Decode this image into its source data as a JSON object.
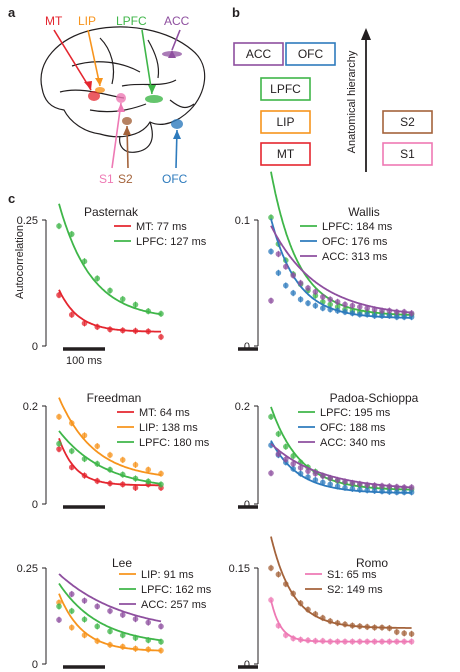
{
  "panel_labels": {
    "a": "a",
    "b": "b",
    "c": "c"
  },
  "colors": {
    "MT": "#e4262f",
    "LIP": "#f7941d",
    "LPFC": "#3fb649",
    "ACC": "#8e4f9f",
    "OFC": "#2e7bbd",
    "S1": "#ee79b4",
    "S2": "#a4633b",
    "ink": "#231f20"
  },
  "panel_a": {
    "labels": [
      "MT",
      "LIP",
      "LPFC",
      "ACC",
      "S1",
      "S2",
      "OFC"
    ],
    "icon": "macaque-brain-icon"
  },
  "panel_b": {
    "axis_label": "Anatomical hierarchy",
    "boxes": [
      "ACC",
      "OFC",
      "LPFC",
      "LIP",
      "MT",
      "S2",
      "S1"
    ]
  },
  "panel_c": {
    "y_axis_label": "Autocorrelation",
    "scale_bar_label": "100 ms"
  },
  "chart_data": [
    {
      "type": "scatter",
      "title": "Pasternak",
      "ylim": [
        0,
        0.25
      ],
      "yticks": [
        "0",
        "0.25"
      ],
      "series": [
        {
          "name": "MT: 77 ms",
          "region": "MT",
          "x": [
            50,
            100,
            150,
            200,
            250,
            300,
            350,
            400,
            450
          ],
          "y": [
            0.101,
            0.062,
            0.045,
            0.038,
            0.033,
            0.031,
            0.03,
            0.029,
            0.018
          ],
          "fit": {
            "a": 0.16,
            "tau": 77,
            "b": 0.028
          }
        },
        {
          "name": "LPFC: 127 ms",
          "region": "LPFC",
          "x": [
            50,
            100,
            150,
            200,
            250,
            300,
            350,
            400,
            450
          ],
          "y": [
            0.238,
            0.222,
            0.168,
            0.134,
            0.11,
            0.093,
            0.082,
            0.069,
            0.064
          ],
          "fit": {
            "a": 0.34,
            "tau": 127,
            "b": 0.053
          }
        }
      ]
    },
    {
      "type": "scatter",
      "title": "Wallis",
      "ylim": [
        0,
        0.1
      ],
      "yticks": [
        "0",
        "0.1"
      ],
      "series": [
        {
          "name": "LPFC: 184 ms",
          "region": "LPFC",
          "x": [
            50,
            100,
            150,
            200,
            250,
            300,
            350,
            400,
            450,
            500,
            550,
            600,
            650,
            700,
            750,
            800,
            850,
            900,
            950,
            1000
          ],
          "y": [
            0.102,
            0.081,
            0.068,
            0.057,
            0.049,
            0.044,
            0.04,
            0.035,
            0.033,
            0.031,
            0.029,
            0.028,
            0.027,
            0.027,
            0.026,
            0.026,
            0.025,
            0.025,
            0.025,
            0.025
          ],
          "fit": {
            "a": 0.15,
            "tau": 184,
            "b": 0.024
          }
        },
        {
          "name": "OFC: 176 ms",
          "region": "OFC",
          "x": [
            50,
            100,
            150,
            200,
            250,
            300,
            350,
            400,
            450,
            500,
            550,
            600,
            650,
            700,
            750,
            800,
            850,
            900,
            950,
            1000
          ],
          "y": [
            0.075,
            0.058,
            0.048,
            0.042,
            0.037,
            0.034,
            0.032,
            0.03,
            0.029,
            0.028,
            0.027,
            0.026,
            0.025,
            0.025,
            0.024,
            0.024,
            0.024,
            0.023,
            0.023,
            0.023
          ],
          "fit": {
            "a": 0.105,
            "tau": 176,
            "b": 0.022
          }
        },
        {
          "name": "ACC: 313 ms",
          "region": "ACC",
          "x": [
            50,
            100,
            150,
            200,
            250,
            300,
            350,
            400,
            450,
            500,
            550,
            600,
            650,
            700,
            750,
            800,
            850,
            900,
            950,
            1000
          ],
          "y": [
            0.036,
            0.073,
            0.063,
            0.056,
            0.05,
            0.046,
            0.043,
            0.039,
            0.037,
            0.035,
            0.033,
            0.032,
            0.031,
            0.03,
            0.029,
            0.028,
            0.028,
            0.027,
            0.027,
            0.026
          ],
          "fit": {
            "a": 0.085,
            "tau": 313,
            "b": 0.023
          }
        }
      ]
    },
    {
      "type": "scatter",
      "title": "Freedman",
      "ylim": [
        0,
        0.2
      ],
      "yticks": [
        "0",
        "0.2"
      ],
      "series": [
        {
          "name": "MT: 64 ms",
          "region": "MT",
          "x": [
            50,
            100,
            150,
            200,
            250,
            300,
            350,
            400,
            450
          ],
          "y": [
            0.112,
            0.075,
            0.058,
            0.047,
            0.042,
            0.04,
            0.033,
            0.04,
            0.033
          ],
          "fit": {
            "a": 0.21,
            "tau": 64,
            "b": 0.038
          }
        },
        {
          "name": "LIP: 138 ms",
          "region": "LIP",
          "x": [
            50,
            100,
            150,
            200,
            250,
            300,
            350,
            400,
            450
          ],
          "y": [
            0.178,
            0.165,
            0.14,
            0.118,
            0.1,
            0.09,
            0.08,
            0.07,
            0.062
          ],
          "fit": {
            "a": 0.24,
            "tau": 138,
            "b": 0.05
          }
        },
        {
          "name": "LPFC: 180 ms",
          "region": "LPFC",
          "x": [
            50,
            100,
            150,
            200,
            250,
            300,
            350,
            400,
            450
          ],
          "y": [
            0.123,
            0.108,
            0.092,
            0.082,
            0.07,
            0.06,
            0.052,
            0.046,
            0.04
          ],
          "fit": {
            "a": 0.16,
            "tau": 180,
            "b": 0.028
          }
        }
      ]
    },
    {
      "type": "scatter",
      "title": "Padoa-Schioppa",
      "ylim": [
        0,
        0.2
      ],
      "yticks": [
        "0",
        "0.2"
      ],
      "series": [
        {
          "name": "LPFC: 195 ms",
          "region": "LPFC",
          "x": [
            50,
            100,
            150,
            200,
            250,
            300,
            350,
            400,
            450,
            500,
            550,
            600,
            650,
            700,
            750,
            800,
            850,
            900,
            950,
            1000
          ],
          "y": [
            0.178,
            0.143,
            0.117,
            0.098,
            0.085,
            0.075,
            0.066,
            0.058,
            0.052,
            0.047,
            0.043,
            0.04,
            0.038,
            0.036,
            0.034,
            0.033,
            0.032,
            0.031,
            0.031,
            0.03
          ],
          "fit": {
            "a": 0.22,
            "tau": 195,
            "b": 0.028
          }
        },
        {
          "name": "OFC: 188 ms",
          "region": "OFC",
          "x": [
            50,
            100,
            150,
            200,
            250,
            300,
            350,
            400,
            450,
            500,
            550,
            600,
            650,
            700,
            750,
            800,
            850,
            900,
            950,
            1000
          ],
          "y": [
            0.12,
            0.1,
            0.085,
            0.072,
            0.062,
            0.055,
            0.049,
            0.044,
            0.04,
            0.036,
            0.033,
            0.031,
            0.029,
            0.028,
            0.027,
            0.026,
            0.025,
            0.024,
            0.024,
            0.024
          ],
          "fit": {
            "a": 0.14,
            "tau": 188,
            "b": 0.022
          }
        },
        {
          "name": "ACC: 340 ms",
          "region": "ACC",
          "x": [
            50,
            100,
            150,
            200,
            250,
            300,
            350,
            400,
            450,
            500,
            550,
            600,
            650,
            700,
            750,
            800,
            850,
            900,
            950,
            1000
          ],
          "y": [
            0.063,
            0.102,
            0.091,
            0.082,
            0.074,
            0.067,
            0.062,
            0.057,
            0.053,
            0.049,
            0.046,
            0.043,
            0.041,
            0.039,
            0.038,
            0.037,
            0.036,
            0.035,
            0.034,
            0.034
          ],
          "fit": {
            "a": 0.11,
            "tau": 340,
            "b": 0.028
          }
        }
      ]
    },
    {
      "type": "scatter",
      "title": "Lee",
      "ylim": [
        0,
        0.25
      ],
      "yticks": [
        "0",
        "0.25"
      ],
      "series": [
        {
          "name": "LIP: 91 ms",
          "region": "LIP",
          "x": [
            50,
            100,
            150,
            200,
            250,
            300,
            350,
            400,
            450
          ],
          "y": [
            0.16,
            0.095,
            0.075,
            0.06,
            0.05,
            0.045,
            0.04,
            0.038,
            0.035
          ],
          "fit": {
            "a": 0.26,
            "tau": 91,
            "b": 0.033
          }
        },
        {
          "name": "LPFC: 162 ms",
          "region": "LPFC",
          "x": [
            50,
            100,
            150,
            200,
            250,
            300,
            350,
            400,
            450
          ],
          "y": [
            0.15,
            0.138,
            0.116,
            0.098,
            0.085,
            0.075,
            0.068,
            0.062,
            0.058
          ],
          "fit": {
            "a": 0.22,
            "tau": 162,
            "b": 0.048
          }
        },
        {
          "name": "ACC: 257 ms",
          "region": "ACC",
          "x": [
            50,
            100,
            150,
            200,
            250,
            300,
            350,
            400,
            450
          ],
          "y": [
            0.115,
            0.182,
            0.165,
            0.15,
            0.138,
            0.128,
            0.117,
            0.108,
            0.098
          ],
          "fit": {
            "a": 0.19,
            "tau": 257,
            "b": 0.078
          }
        }
      ]
    },
    {
      "type": "scatter",
      "title": "Romo",
      "ylim": [
        0,
        0.15
      ],
      "yticks": [
        "0",
        "0.15"
      ],
      "series": [
        {
          "name": "S1: 65 ms",
          "region": "S1",
          "x": [
            50,
            100,
            150,
            200,
            250,
            300,
            350,
            400,
            450,
            500,
            550,
            600,
            650,
            700,
            750,
            800,
            850,
            900,
            950,
            1000
          ],
          "y": [
            0.1,
            0.06,
            0.045,
            0.04,
            0.038,
            0.037,
            0.036,
            0.036,
            0.035,
            0.035,
            0.035,
            0.035,
            0.035,
            0.035,
            0.035,
            0.035,
            0.035,
            0.035,
            0.035,
            0.035
          ],
          "fit": {
            "a": 0.14,
            "tau": 65,
            "b": 0.035
          }
        },
        {
          "name": "S2: 149 ms",
          "region": "S2",
          "x": [
            50,
            100,
            150,
            200,
            250,
            300,
            350,
            400,
            450,
            500,
            550,
            600,
            650,
            700,
            750,
            800,
            850,
            900,
            950,
            1000
          ],
          "y": [
            0.15,
            0.14,
            0.125,
            0.11,
            0.095,
            0.085,
            0.078,
            0.072,
            0.067,
            0.064,
            0.062,
            0.06,
            0.059,
            0.058,
            0.057,
            0.057,
            0.056,
            0.05,
            0.048,
            0.047
          ],
          "fit": {
            "a": 0.2,
            "tau": 149,
            "b": 0.056
          }
        }
      ]
    }
  ]
}
